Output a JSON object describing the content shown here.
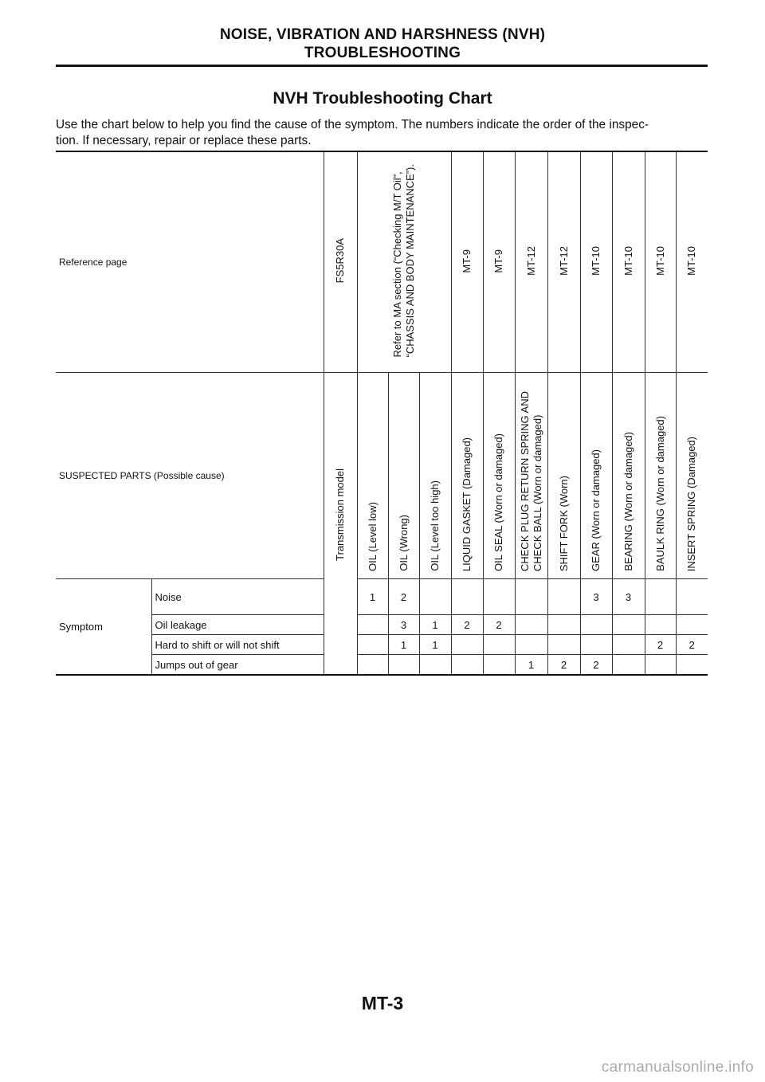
{
  "header": {
    "line1": "NOISE, VIBRATION AND HARSHNESS (NVH)",
    "line2": "TROUBLESHOOTING"
  },
  "title": "NVH Troubleshooting Chart",
  "intro": "Use the chart below to help you find the cause of the symptom. The numbers indicate the order of the inspec-\ntion. If necessary, repair or replace these parts.",
  "table": {
    "ref_label": "Reference page",
    "ref_model": "FS5R30A",
    "ref_pages": [
      "Refer to MA section (“Checking M/T Oil”,\n“CHASSIS AND BODY MAINTENANCE”).",
      "MT-9",
      "MT-9",
      "MT-12",
      "MT-12",
      "MT-10",
      "MT-10",
      "MT-10",
      "MT-10"
    ],
    "suspected_label": "SUSPECTED PARTS (Possible cause)",
    "transmission_model_label": "Transmission model",
    "parts": [
      "OIL (Level low)",
      "OIL (Wrong)",
      "OIL (Level too high)",
      "LIQUID GASKET (Damaged)",
      "OIL SEAL (Worn or damaged)",
      "CHECK PLUG RETURN SPRING AND\nCHECK BALL (Worn or damaged)",
      "SHIFT FORK (Worn)",
      "GEAR (Worn or damaged)",
      "BEARING (Worn or damaged)",
      "BAULK RING (Worn or damaged)",
      "INSERT SPRING (Damaged)"
    ],
    "symptom_label": "Symptom",
    "symptoms": [
      {
        "name": "Noise",
        "values": [
          "1",
          "2",
          "",
          "",
          "",
          "",
          "",
          "3",
          "3",
          "",
          ""
        ]
      },
      {
        "name": "Oil leakage",
        "values": [
          "",
          "3",
          "1",
          "2",
          "2",
          "",
          "",
          "",
          "",
          "",
          ""
        ]
      },
      {
        "name": "Hard to shift or will not shift",
        "values": [
          "",
          "1",
          "1",
          "",
          "",
          "",
          "",
          "",
          "",
          "2",
          "2"
        ]
      },
      {
        "name": "Jumps out of gear",
        "values": [
          "",
          "",
          "",
          "",
          "",
          "1",
          "2",
          "2",
          "",
          "",
          ""
        ]
      }
    ]
  },
  "footer": "MT-3",
  "watermark": "carmanualsonline.info"
}
